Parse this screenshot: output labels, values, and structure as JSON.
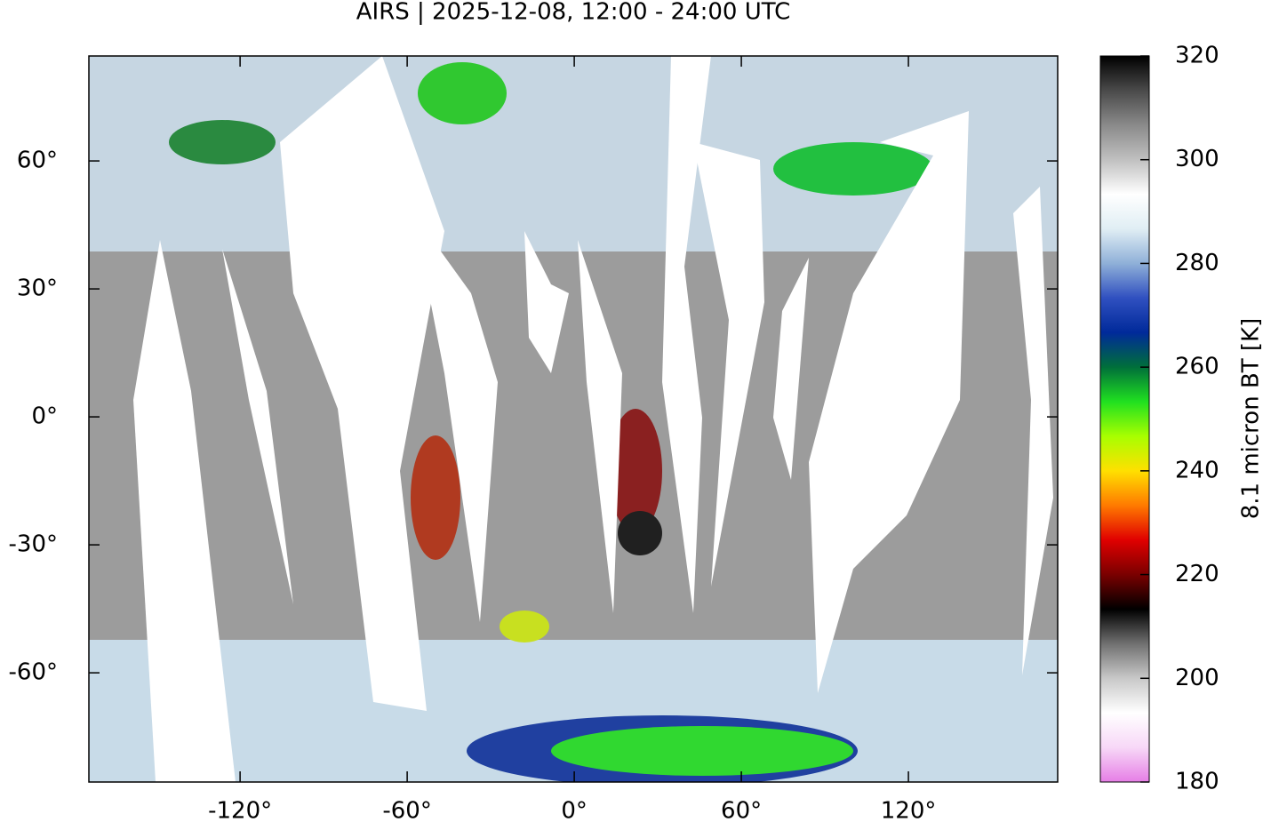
{
  "chart_data": {
    "type": "map",
    "title": "AIRS | 2025-12-08, 12:00 - 24:00 UTC",
    "xlim": [
      -174.3,
      173.6
    ],
    "ylim": [
      -85.6,
      84.6
    ],
    "xticks": [
      {
        "value": -120,
        "label": "-120°"
      },
      {
        "value": -60,
        "label": "-60°"
      },
      {
        "value": 0,
        "label": "0°"
      },
      {
        "value": 60,
        "label": "60°"
      },
      {
        "value": 120,
        "label": "120°"
      }
    ],
    "yticks": [
      {
        "value": 60,
        "label": "60°"
      },
      {
        "value": 30,
        "label": "30°"
      },
      {
        "value": 0,
        "label": "0°"
      },
      {
        "value": -30,
        "label": "-30°"
      },
      {
        "value": -60,
        "label": "-60°"
      }
    ],
    "colorbar": {
      "label": "8.1 micron BT [K]",
      "lim": [
        180,
        320
      ],
      "ticks": [
        180,
        200,
        220,
        240,
        260,
        280,
        300,
        320
      ],
      "colormap": [
        "#e67ee6",
        "#f7d8f7",
        "#ffffff",
        "#c8c8c8",
        "#707070",
        "#000000",
        "#7a0000",
        "#e00000",
        "#ff7a00",
        "#ffe000",
        "#a8ff00",
        "#20e020",
        "#006f3a",
        "#002a9a",
        "#3050c0",
        "#8fb0d8",
        "#e0eef4",
        "#ffffff",
        "#c0c0c0",
        "#8a8a8a",
        "#4a4a4a",
        "#000000"
      ]
    }
  }
}
